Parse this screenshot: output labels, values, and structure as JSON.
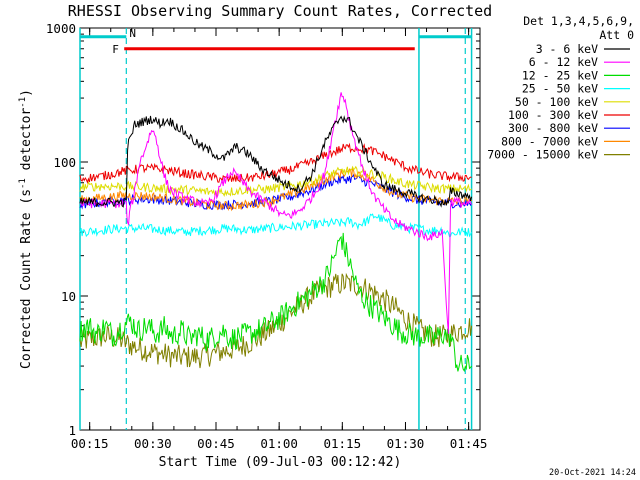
{
  "chart_data": {
    "type": "line",
    "title": "RHESSI Observing Summary Count Rates, Corrected",
    "xlabel": "Start Time (09-Jul-03 00:12:42)",
    "ylabel_main": "Corrected Count Rate (s",
    "ylabel_sup1": "-1",
    "ylabel_mid": " detector",
    "ylabel_sup2": "-1",
    "ylabel_end": ")",
    "yscale": "log",
    "ylim": [
      1,
      1000
    ],
    "xlim_minutes": [
      0,
      95
    ],
    "x_unit": "minutes since 00:12:42",
    "ytick_labels": [
      "1000",
      "100",
      "10",
      "1"
    ],
    "ytick_values": [
      1000,
      100,
      10,
      1
    ],
    "xtick_labels": [
      "00:15",
      "00:30",
      "00:45",
      "01:00",
      "01:15",
      "01:30",
      "01:45"
    ],
    "xtick_values": [
      2.3,
      17.3,
      32.3,
      47.3,
      62.3,
      77.3,
      92.3
    ],
    "legend_header": [
      "Det 1,3,4,5,6,9,",
      "Att 0"
    ],
    "legend_position": "outside-right",
    "series": [
      {
        "name": "3 - 6 keV",
        "color": "#000000",
        "x": [
          0,
          11,
          11.3,
          13,
          15,
          17,
          19,
          21,
          23,
          25,
          28,
          31,
          34,
          37,
          40,
          43,
          46,
          49,
          52,
          55,
          58,
          60,
          62,
          64,
          66,
          69,
          72,
          75,
          78,
          81,
          84,
          86,
          87.5,
          88,
          90,
          93
        ],
        "values": [
          50,
          50,
          130,
          190,
          200,
          210,
          195,
          205,
          185,
          165,
          135,
          120,
          105,
          130,
          115,
          90,
          78,
          68,
          63,
          80,
          135,
          175,
          220,
          200,
          150,
          100,
          68,
          62,
          58,
          54,
          52,
          50,
          48,
          60,
          58,
          55
        ]
      },
      {
        "name": "6 - 12 keV",
        "color": "#ff00ff",
        "x": [
          0,
          11,
          11.3,
          12,
          13,
          14,
          16,
          17,
          18,
          19,
          20,
          21,
          22,
          24,
          26,
          28,
          30,
          32,
          34,
          36,
          38,
          40,
          42,
          44,
          46,
          48,
          50,
          52,
          54,
          56,
          58,
          59,
          60,
          61,
          62,
          63,
          64,
          66,
          68,
          70,
          72,
          74,
          76,
          78,
          80,
          82,
          84,
          86,
          87.5,
          88,
          89,
          91,
          93
        ],
        "values": [
          49,
          49,
          33,
          45,
          60,
          95,
          140,
          175,
          155,
          110,
          80,
          65,
          60,
          55,
          52,
          50,
          48,
          55,
          70,
          85,
          75,
          62,
          55,
          50,
          45,
          40,
          40,
          43,
          50,
          60,
          80,
          110,
          170,
          230,
          320,
          290,
          200,
          120,
          75,
          55,
          45,
          38,
          34,
          32,
          30,
          28,
          28,
          30,
          5,
          50,
          51,
          49,
          48
        ]
      },
      {
        "name": "12 - 25 keV",
        "color": "#00dd00",
        "x": [
          0,
          2,
          4,
          6,
          8,
          10,
          12,
          14,
          16,
          18,
          20,
          22,
          24,
          26,
          28,
          30,
          32,
          34,
          36,
          38,
          40,
          42,
          44,
          46,
          48,
          50,
          52,
          54,
          56,
          58,
          59,
          60,
          61,
          62,
          63,
          64,
          65,
          66,
          68,
          70,
          72,
          74,
          76,
          78,
          80,
          82,
          84,
          86,
          88,
          89.5,
          90,
          92,
          93
        ],
        "values": [
          5.5,
          6,
          5.2,
          6,
          5,
          6,
          6.5,
          5.5,
          6,
          5.2,
          5.8,
          5,
          5.5,
          4.8,
          5.2,
          4.7,
          5,
          5.5,
          4.8,
          5,
          5.2,
          5.5,
          5.8,
          6.5,
          7,
          8,
          9,
          10,
          11.5,
          13,
          15,
          18,
          22,
          28,
          22,
          18,
          14,
          11,
          9,
          8,
          7,
          6.2,
          5.5,
          5.2,
          5,
          5,
          4.8,
          5.2,
          5,
          3.2,
          3,
          3,
          3
        ]
      },
      {
        "name": "25 - 50 keV",
        "color": "#00ffff",
        "x": [
          0,
          5,
          10,
          15,
          20,
          25,
          30,
          35,
          40,
          45,
          50,
          55,
          60,
          62,
          64,
          66,
          68,
          70,
          72,
          74,
          76,
          78,
          80,
          82,
          84,
          86,
          88,
          90,
          93
        ],
        "values": [
          30,
          31,
          32,
          32,
          31,
          30,
          31,
          32,
          31,
          32,
          33,
          34,
          35,
          35,
          36,
          34,
          36,
          40,
          37,
          34,
          33,
          32,
          32,
          31,
          31,
          31,
          29,
          30,
          30
        ]
      },
      {
        "name": "50 - 100 keV",
        "color": "#dddd00",
        "x": [
          0,
          5,
          10,
          15,
          20,
          25,
          30,
          35,
          40,
          45,
          50,
          55,
          60,
          63,
          66,
          69,
          72,
          75,
          78,
          81,
          84,
          87,
          90,
          93
        ],
        "values": [
          65,
          66,
          66,
          65,
          63,
          62,
          60,
          60,
          62,
          63,
          66,
          72,
          82,
          86,
          85,
          82,
          78,
          72,
          68,
          66,
          64,
          63,
          63,
          63
        ]
      },
      {
        "name": "100 - 300 keV",
        "color": "#ee0000",
        "x": [
          0,
          5,
          10,
          15,
          20,
          25,
          30,
          35,
          40,
          45,
          50,
          55,
          60,
          63,
          66,
          69,
          72,
          75,
          78,
          81,
          84,
          87,
          90,
          93
        ],
        "values": [
          75,
          78,
          85,
          90,
          88,
          82,
          78,
          74,
          76,
          80,
          88,
          100,
          118,
          128,
          128,
          122,
          112,
          100,
          90,
          84,
          80,
          78,
          77,
          77
        ]
      },
      {
        "name": "300 - 800 keV",
        "color": "#0000ff",
        "x": [
          0,
          5,
          10,
          15,
          20,
          25,
          30,
          35,
          40,
          45,
          50,
          55,
          60,
          65,
          70,
          75,
          80,
          85,
          90,
          93
        ],
        "values": [
          48,
          50,
          52,
          53,
          52,
          50,
          48,
          48,
          49,
          51,
          55,
          62,
          72,
          76,
          68,
          58,
          52,
          50,
          49,
          49
        ]
      },
      {
        "name": "800 - 7000 keV",
        "color": "#ff8800",
        "x": [
          0,
          5,
          10,
          15,
          20,
          25,
          30,
          35,
          40,
          45,
          50,
          55,
          60,
          63,
          66,
          69,
          72,
          75,
          78,
          81,
          84,
          87,
          90,
          93
        ],
        "values": [
          52,
          54,
          56,
          56,
          54,
          51,
          48,
          47,
          48,
          51,
          57,
          66,
          78,
          84,
          82,
          75,
          65,
          58,
          55,
          53,
          52,
          51,
          51,
          51
        ]
      },
      {
        "name": "7000 - 15000 keV",
        "color": "#808000",
        "x": [
          0,
          3,
          6,
          9,
          12,
          15,
          18,
          21,
          24,
          27,
          30,
          33,
          36,
          39,
          42,
          45,
          48,
          51,
          54,
          57,
          60,
          63,
          66,
          69,
          72,
          75,
          78,
          81,
          84,
          87,
          90,
          93
        ],
        "values": [
          4.5,
          4.8,
          5,
          4.8,
          4.3,
          4,
          3.8,
          3.6,
          3.5,
          3.5,
          3.6,
          3.8,
          4,
          4.3,
          4.8,
          5.5,
          6.5,
          8,
          9.5,
          11,
          12,
          12.5,
          12,
          11,
          9.5,
          8,
          6.5,
          5.5,
          5,
          5,
          5.5,
          6
        ]
      }
    ],
    "annotations": [
      {
        "label": "F",
        "color": "#ee0000",
        "kind": "flare-flag",
        "x_start": 10.5,
        "x_end": 79.5,
        "y": 700
      },
      {
        "label": "N",
        "color": "#00cccc",
        "kind": "night-flag",
        "intervals": [
          [
            0,
            11
          ],
          [
            80.5,
            93
          ]
        ],
        "y": 860
      }
    ],
    "night_markers": {
      "color": "#00cccc",
      "solid_x": [
        0,
        80.5,
        93
      ],
      "dashed_x": [
        11,
        91.5
      ]
    }
  },
  "footer": {
    "date": "20-Oct-2021 14:24"
  }
}
